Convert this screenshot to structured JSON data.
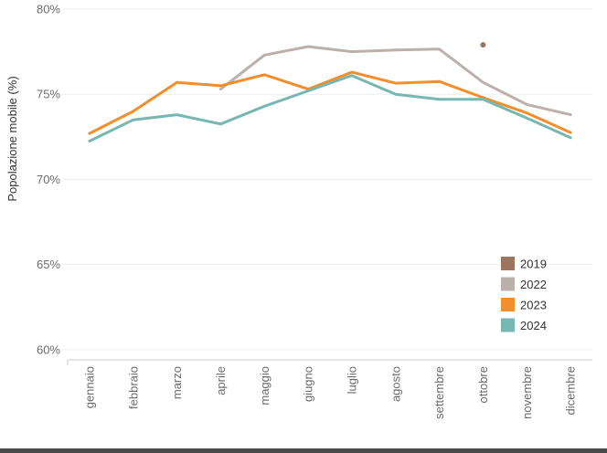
{
  "chart_data": {
    "type": "line",
    "title": "",
    "xlabel": "",
    "ylabel": "Popolazione mobile (%)",
    "ylim": [
      59.4,
      80
    ],
    "yticks": [
      60,
      65,
      70,
      75,
      80
    ],
    "ytick_labels": [
      "60%",
      "65%",
      "70%",
      "75%",
      "80%"
    ],
    "categories": [
      "gennaio",
      "febbraio",
      "marzo",
      "aprile",
      "maggio",
      "giugno",
      "luglio",
      "agosto",
      "settembre",
      "ottobre",
      "novembre",
      "dicembre"
    ],
    "legend_position": "bottom-right",
    "series": [
      {
        "name": "2019",
        "color": "#9c7560",
        "values": [
          null,
          null,
          null,
          null,
          null,
          null,
          null,
          null,
          null,
          77.9,
          null,
          null
        ]
      },
      {
        "name": "2022",
        "color": "#bab0ac",
        "values": [
          null,
          null,
          null,
          75.3,
          77.3,
          77.8,
          77.5,
          77.6,
          77.65,
          75.7,
          74.4,
          73.8
        ]
      },
      {
        "name": "2023",
        "color": "#f28e2b",
        "values": [
          72.7,
          74.0,
          75.7,
          75.5,
          76.15,
          75.3,
          76.3,
          75.65,
          75.75,
          74.8,
          73.9,
          72.75
        ]
      },
      {
        "name": "2024",
        "color": "#76b7b2",
        "values": [
          72.25,
          73.5,
          73.8,
          73.25,
          74.3,
          75.2,
          76.1,
          75.0,
          74.7,
          74.7,
          73.6,
          72.45
        ]
      }
    ]
  }
}
